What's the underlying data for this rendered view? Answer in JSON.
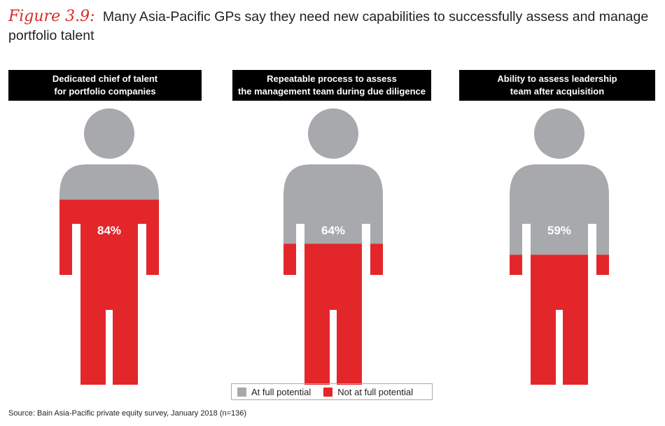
{
  "title": {
    "figure_label": "Figure 3.9:",
    "text": "Many Asia-Pacific GPs say they need new capabilities to successfully assess and manage portfolio talent"
  },
  "chart_data": {
    "type": "pictograph",
    "categories": [
      "Dedicated chief of talent for portfolio companies",
      "Repeatable process to assess the management team during due diligence",
      "Ability to assess leadership team after acquisition"
    ],
    "series": [
      {
        "name": "Not at full potential",
        "values": [
          84,
          64,
          59
        ],
        "color": "#e3262a"
      },
      {
        "name": "At full potential",
        "values": [
          16,
          36,
          41
        ],
        "color": "#a7a9ac"
      }
    ],
    "data_labels": [
      "84%",
      "64%",
      "59%"
    ],
    "unit": "%",
    "legend_placement": "bottom-center"
  },
  "panels": [
    {
      "header_line1": "Dedicated chief of talent",
      "header_line2": "for portfolio companies"
    },
    {
      "header_line1": "Repeatable process to assess",
      "header_line2": "the management team during due diligence"
    },
    {
      "header_line1": "Ability to assess leadership",
      "header_line2": "team after acquisition"
    }
  ],
  "legend": {
    "items": [
      {
        "label": "At full potential",
        "color": "#a7a9ac"
      },
      {
        "label": "Not at full potential",
        "color": "#e3262a"
      }
    ]
  },
  "source": "Source: Bain Asia-Pacific private equity survey, January 2018 (n=136)"
}
